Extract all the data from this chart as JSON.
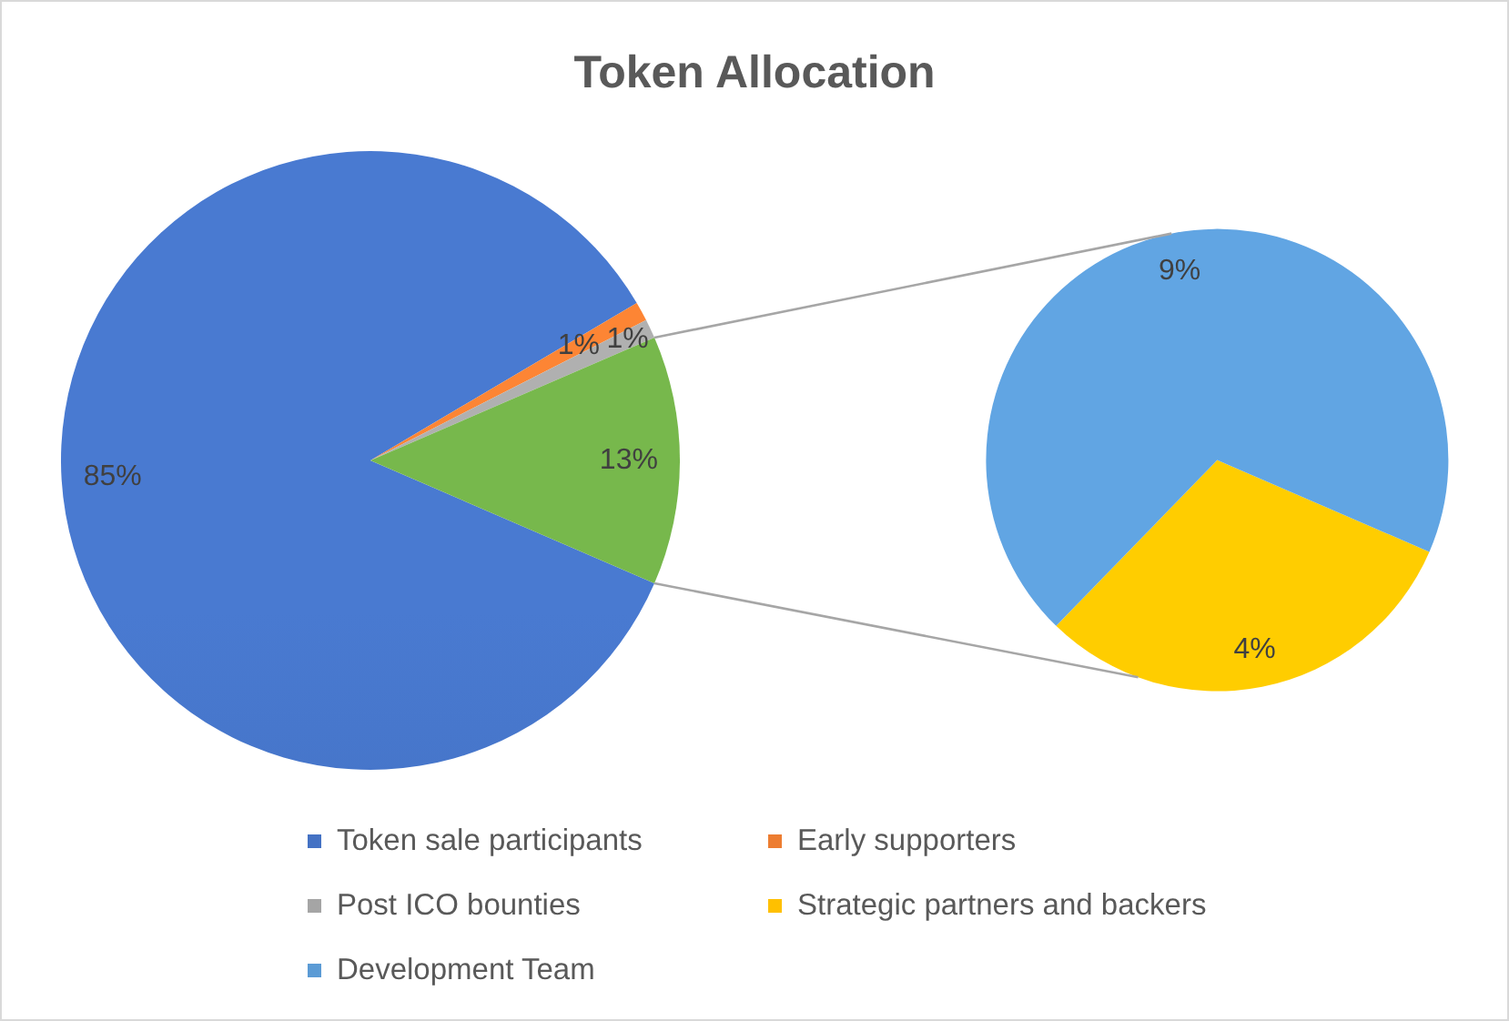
{
  "chart_data": [
    {
      "type": "pie",
      "title": "Token Allocation",
      "categories": [
        "Token sale participants",
        "Early supporters",
        "Post ICO bounties",
        null
      ],
      "values": [
        85,
        1,
        1,
        13
      ],
      "colors": [
        "#4472c4",
        "#ed7d31",
        "#a5a5a5",
        "#70ad47"
      ],
      "value_labels": [
        "85%",
        "1%",
        "1%",
        "13%"
      ],
      "legend": "bottom"
    },
    {
      "type": "pie",
      "categories": [
        "Strategic partners and backers",
        "Development Team"
      ],
      "values": [
        4,
        9
      ],
      "colors": [
        "#ffc000",
        "#5b9bd5"
      ],
      "value_labels": [
        "4%",
        "9%"
      ],
      "legend": "bottom"
    }
  ]
}
